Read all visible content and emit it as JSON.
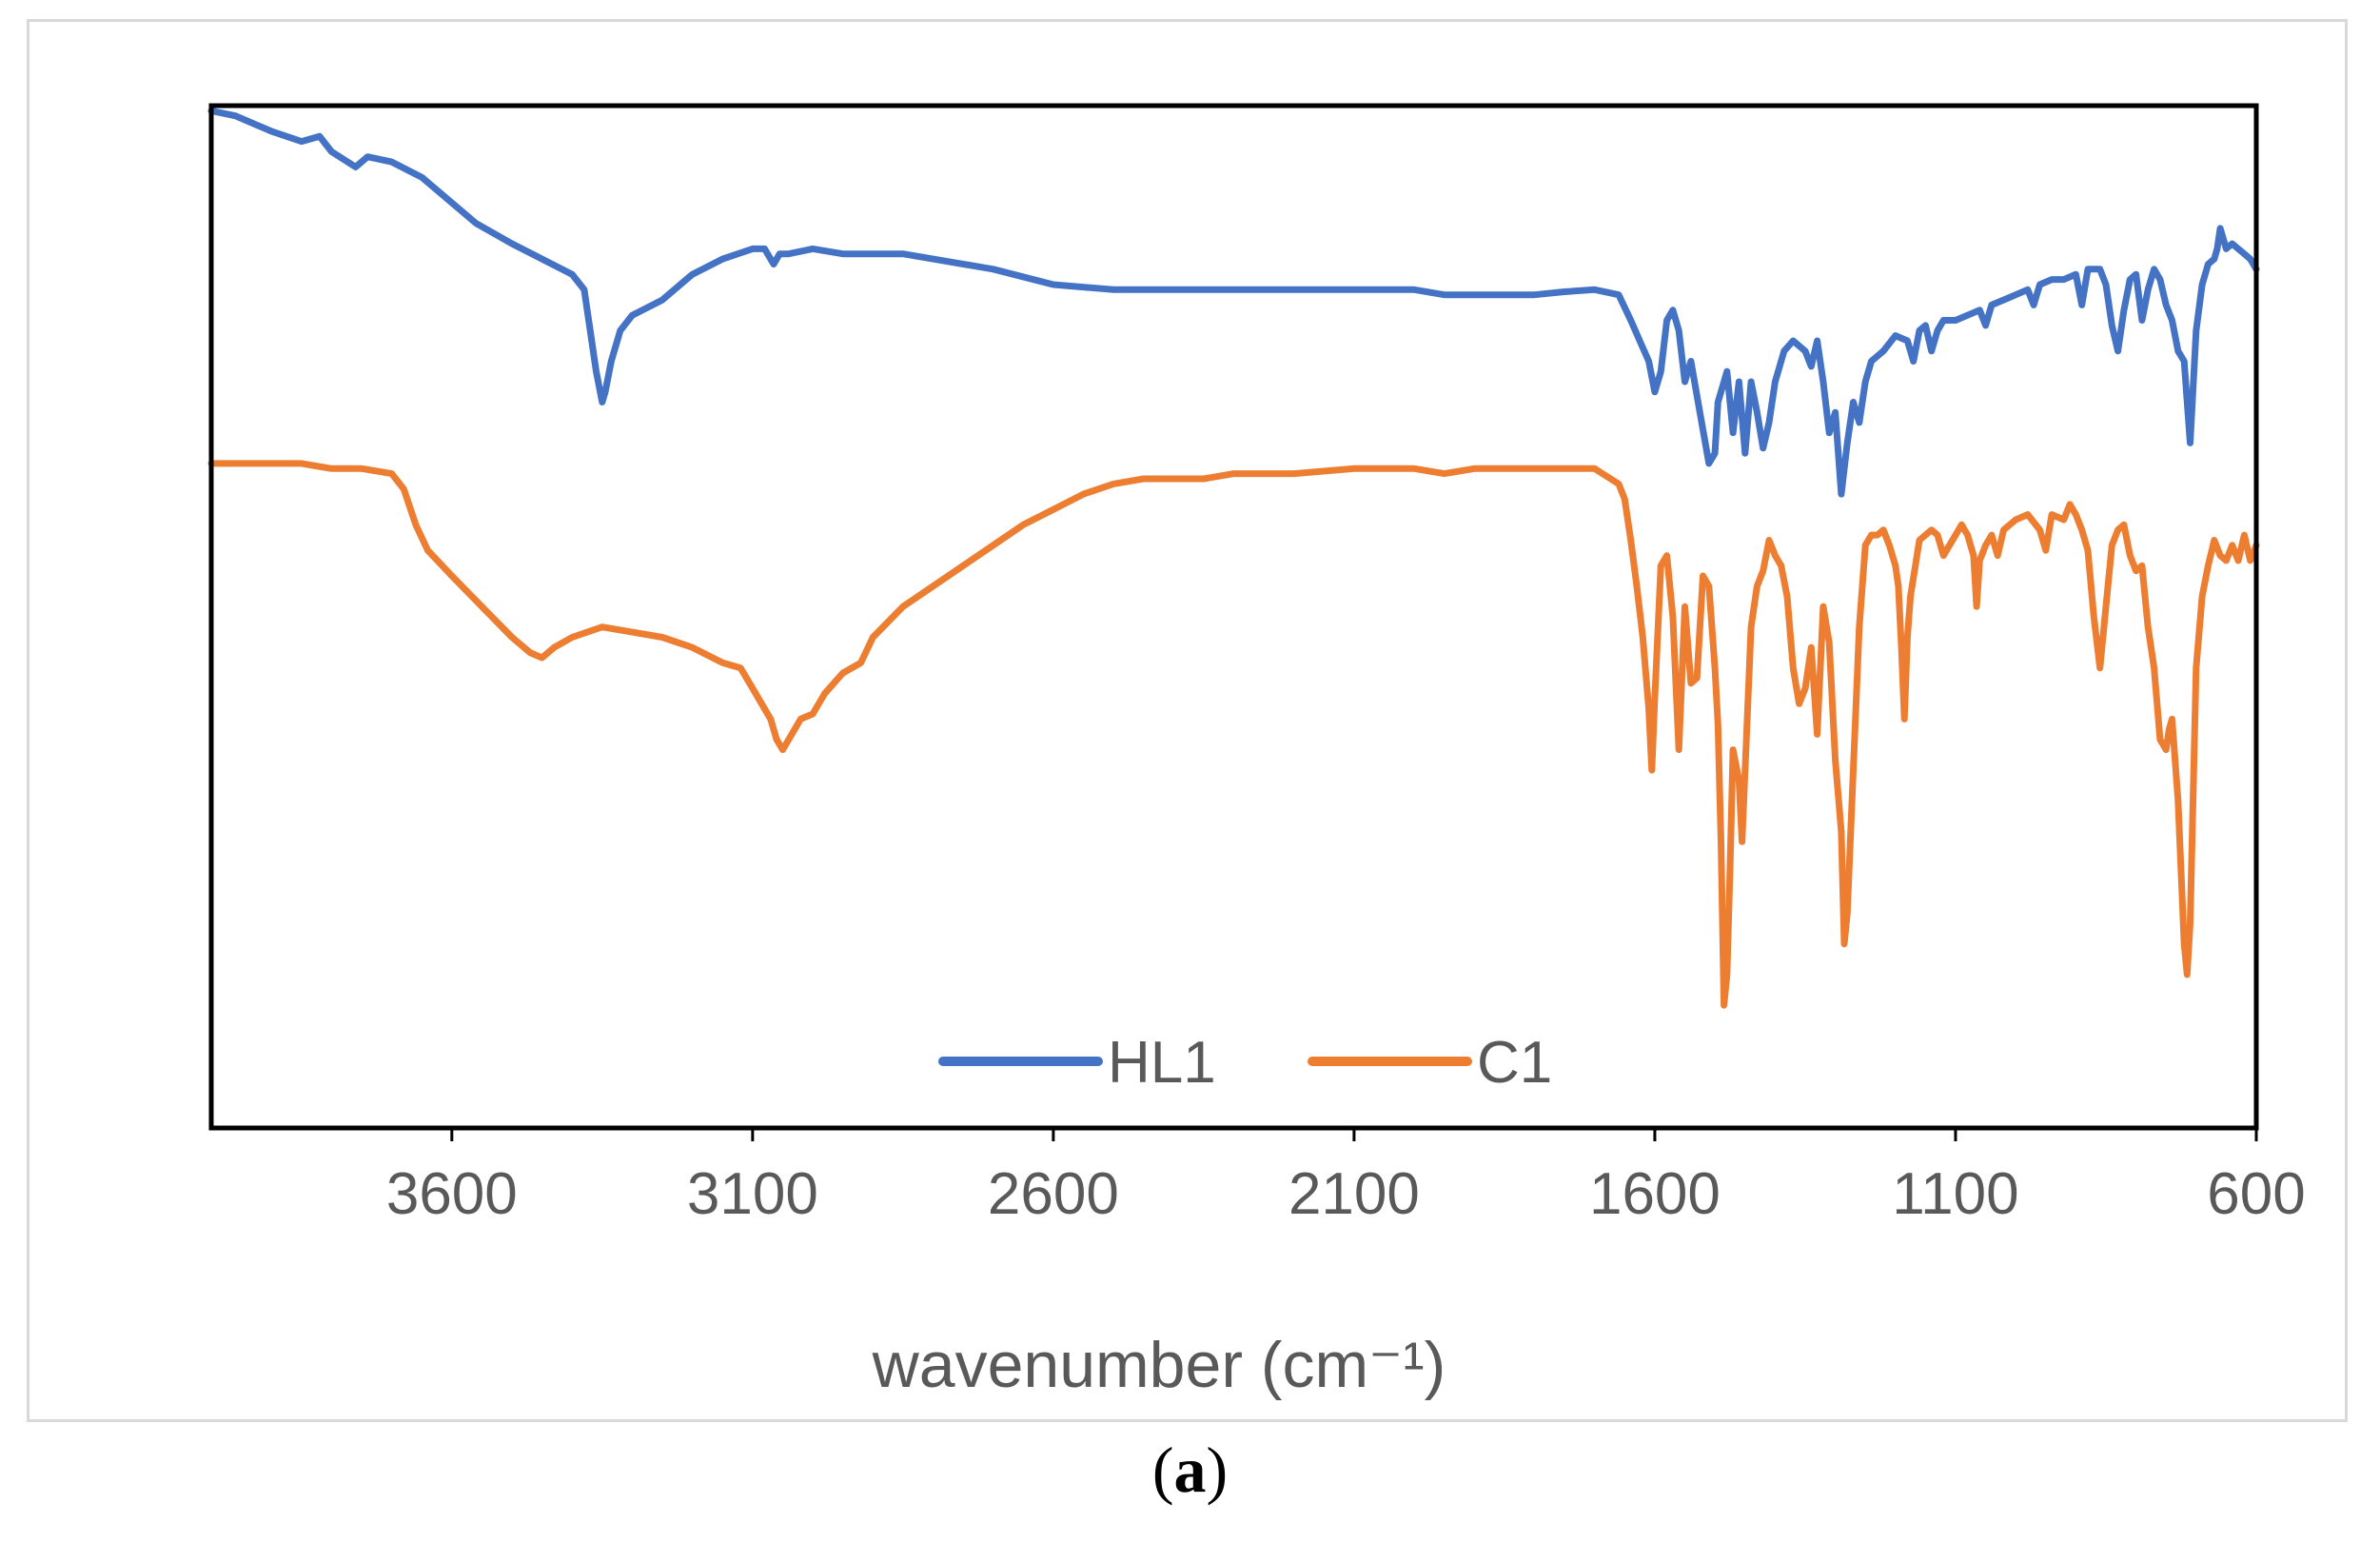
{
  "caption": {
    "open": "(",
    "letter": "a",
    "close": ")"
  },
  "chart_data": {
    "type": "line",
    "title": "",
    "xlabel": "wavenumber (cm⁻¹)",
    "ylabel": "",
    "xlim": [
      4000,
      600
    ],
    "ylim": [
      0,
      100
    ],
    "x_reversed": true,
    "x_ticks": [
      3600,
      3100,
      2600,
      2100,
      1600,
      1100,
      600
    ],
    "grid": false,
    "legend_position": "bottom-center",
    "series": [
      {
        "name": "HL1",
        "color": "#4472C4",
        "points": [
          [
            4000,
            99.5
          ],
          [
            3960,
            99
          ],
          [
            3900,
            97.5
          ],
          [
            3850,
            96.5
          ],
          [
            3820,
            97
          ],
          [
            3800,
            95.5
          ],
          [
            3760,
            94
          ],
          [
            3740,
            95
          ],
          [
            3700,
            94.5
          ],
          [
            3650,
            93
          ],
          [
            3600,
            90.5
          ],
          [
            3560,
            88.5
          ],
          [
            3500,
            86.5
          ],
          [
            3450,
            85
          ],
          [
            3400,
            83.5
          ],
          [
            3380,
            82
          ],
          [
            3370,
            78
          ],
          [
            3360,
            74
          ],
          [
            3350,
            71
          ],
          [
            3345,
            72
          ],
          [
            3335,
            75
          ],
          [
            3320,
            78
          ],
          [
            3300,
            79.5
          ],
          [
            3250,
            81
          ],
          [
            3200,
            83.5
          ],
          [
            3150,
            85
          ],
          [
            3100,
            86
          ],
          [
            3080,
            86
          ],
          [
            3065,
            84.5
          ],
          [
            3055,
            85.5
          ],
          [
            3040,
            85.5
          ],
          [
            3000,
            86
          ],
          [
            2950,
            85.5
          ],
          [
            2900,
            85.5
          ],
          [
            2850,
            85.5
          ],
          [
            2800,
            85
          ],
          [
            2700,
            84
          ],
          [
            2600,
            82.5
          ],
          [
            2500,
            82
          ],
          [
            2400,
            82
          ],
          [
            2300,
            82
          ],
          [
            2200,
            82
          ],
          [
            2100,
            82
          ],
          [
            2000,
            82
          ],
          [
            1950,
            81.5
          ],
          [
            1900,
            81.5
          ],
          [
            1850,
            81.5
          ],
          [
            1800,
            81.5
          ],
          [
            1750,
            81.8
          ],
          [
            1700,
            82
          ],
          [
            1660,
            81.5
          ],
          [
            1640,
            79
          ],
          [
            1625,
            77
          ],
          [
            1610,
            75
          ],
          [
            1600,
            72
          ],
          [
            1590,
            74
          ],
          [
            1580,
            79
          ],
          [
            1570,
            80
          ],
          [
            1560,
            78
          ],
          [
            1550,
            73
          ],
          [
            1540,
            75
          ],
          [
            1525,
            70
          ],
          [
            1510,
            65
          ],
          [
            1500,
            66
          ],
          [
            1495,
            71
          ],
          [
            1480,
            74
          ],
          [
            1470,
            68
          ],
          [
            1460,
            73
          ],
          [
            1450,
            66
          ],
          [
            1440,
            73
          ],
          [
            1430,
            70
          ],
          [
            1420,
            66.5
          ],
          [
            1410,
            69
          ],
          [
            1400,
            73
          ],
          [
            1385,
            76
          ],
          [
            1370,
            77
          ],
          [
            1350,
            76
          ],
          [
            1340,
            74.5
          ],
          [
            1330,
            77
          ],
          [
            1320,
            73
          ],
          [
            1310,
            68
          ],
          [
            1300,
            70
          ],
          [
            1290,
            62
          ],
          [
            1280,
            67
          ],
          [
            1270,
            71
          ],
          [
            1260,
            69
          ],
          [
            1250,
            73
          ],
          [
            1240,
            75
          ],
          [
            1230,
            75.5
          ],
          [
            1220,
            76
          ],
          [
            1200,
            77.5
          ],
          [
            1180,
            77
          ],
          [
            1170,
            75
          ],
          [
            1160,
            78
          ],
          [
            1150,
            78.5
          ],
          [
            1140,
            76
          ],
          [
            1130,
            78
          ],
          [
            1120,
            79
          ],
          [
            1100,
            79
          ],
          [
            1080,
            79.5
          ],
          [
            1060,
            80
          ],
          [
            1050,
            78.5
          ],
          [
            1040,
            80.5
          ],
          [
            1020,
            81
          ],
          [
            1000,
            81.5
          ],
          [
            980,
            82
          ],
          [
            970,
            80.5
          ],
          [
            960,
            82.5
          ],
          [
            940,
            83
          ],
          [
            920,
            83
          ],
          [
            900,
            83.5
          ],
          [
            890,
            80.5
          ],
          [
            880,
            84
          ],
          [
            860,
            84
          ],
          [
            850,
            82.5
          ],
          [
            840,
            78.5
          ],
          [
            830,
            76
          ],
          [
            820,
            80
          ],
          [
            810,
            83
          ],
          [
            800,
            83.5
          ],
          [
            790,
            79
          ],
          [
            780,
            82
          ],
          [
            770,
            84
          ],
          [
            760,
            83
          ],
          [
            750,
            80.5
          ],
          [
            740,
            79
          ],
          [
            730,
            76
          ],
          [
            720,
            75
          ],
          [
            710,
            67
          ],
          [
            700,
            78
          ],
          [
            690,
            82.5
          ],
          [
            680,
            84.5
          ],
          [
            670,
            85
          ],
          [
            665,
            86
          ],
          [
            660,
            88
          ],
          [
            650,
            86
          ],
          [
            640,
            86.5
          ],
          [
            630,
            86
          ],
          [
            620,
            85.5
          ],
          [
            610,
            85
          ],
          [
            600,
            84
          ]
        ]
      },
      {
        "name": "C1",
        "color": "#ED7D31",
        "points": [
          [
            4000,
            65
          ],
          [
            3950,
            65
          ],
          [
            3900,
            65
          ],
          [
            3850,
            65
          ],
          [
            3800,
            64.5
          ],
          [
            3750,
            64.5
          ],
          [
            3700,
            64
          ],
          [
            3680,
            62.5
          ],
          [
            3660,
            59
          ],
          [
            3640,
            56.5
          ],
          [
            3600,
            54
          ],
          [
            3550,
            51
          ],
          [
            3500,
            48
          ],
          [
            3470,
            46.5
          ],
          [
            3450,
            46
          ],
          [
            3430,
            47
          ],
          [
            3400,
            48
          ],
          [
            3350,
            49
          ],
          [
            3300,
            48.5
          ],
          [
            3250,
            48
          ],
          [
            3200,
            47
          ],
          [
            3150,
            45.5
          ],
          [
            3120,
            45
          ],
          [
            3100,
            43
          ],
          [
            3080,
            41
          ],
          [
            3070,
            40
          ],
          [
            3060,
            38
          ],
          [
            3050,
            37
          ],
          [
            3040,
            38
          ],
          [
            3020,
            40
          ],
          [
            3000,
            40.5
          ],
          [
            2980,
            42.5
          ],
          [
            2950,
            44.5
          ],
          [
            2920,
            45.5
          ],
          [
            2900,
            48
          ],
          [
            2850,
            51
          ],
          [
            2800,
            53
          ],
          [
            2750,
            55
          ],
          [
            2700,
            57
          ],
          [
            2650,
            59
          ],
          [
            2600,
            60.5
          ],
          [
            2550,
            62
          ],
          [
            2500,
            63
          ],
          [
            2450,
            63.5
          ],
          [
            2400,
            63.5
          ],
          [
            2350,
            63.5
          ],
          [
            2300,
            64
          ],
          [
            2250,
            64
          ],
          [
            2200,
            64
          ],
          [
            2100,
            64.5
          ],
          [
            2000,
            64.5
          ],
          [
            1950,
            64
          ],
          [
            1900,
            64.5
          ],
          [
            1850,
            64.5
          ],
          [
            1800,
            64.5
          ],
          [
            1750,
            64.5
          ],
          [
            1700,
            64.5
          ],
          [
            1660,
            63
          ],
          [
            1650,
            61.5
          ],
          [
            1640,
            57.5
          ],
          [
            1630,
            53
          ],
          [
            1620,
            48
          ],
          [
            1610,
            41
          ],
          [
            1605,
            35
          ],
          [
            1600,
            42
          ],
          [
            1590,
            55
          ],
          [
            1580,
            56
          ],
          [
            1570,
            50
          ],
          [
            1560,
            37
          ],
          [
            1550,
            51
          ],
          [
            1540,
            43.5
          ],
          [
            1530,
            44
          ],
          [
            1520,
            54
          ],
          [
            1510,
            53
          ],
          [
            1500,
            45
          ],
          [
            1495,
            39.5
          ],
          [
            1490,
            28
          ],
          [
            1485,
            12
          ],
          [
            1480,
            15
          ],
          [
            1475,
            25
          ],
          [
            1470,
            37
          ],
          [
            1460,
            34
          ],
          [
            1455,
            28
          ],
          [
            1450,
            35
          ],
          [
            1440,
            49
          ],
          [
            1430,
            53
          ],
          [
            1420,
            54.5
          ],
          [
            1410,
            57.5
          ],
          [
            1400,
            56
          ],
          [
            1390,
            55
          ],
          [
            1380,
            52
          ],
          [
            1370,
            45
          ],
          [
            1360,
            41.5
          ],
          [
            1350,
            43
          ],
          [
            1340,
            47
          ],
          [
            1330,
            38.5
          ],
          [
            1320,
            51
          ],
          [
            1310,
            47.5
          ],
          [
            1300,
            36
          ],
          [
            1290,
            29
          ],
          [
            1285,
            18
          ],
          [
            1280,
            21
          ],
          [
            1270,
            35
          ],
          [
            1260,
            49
          ],
          [
            1250,
            57
          ],
          [
            1240,
            58
          ],
          [
            1230,
            58
          ],
          [
            1220,
            58.5
          ],
          [
            1210,
            57
          ],
          [
            1200,
            55
          ],
          [
            1195,
            53
          ],
          [
            1190,
            47
          ],
          [
            1185,
            40
          ],
          [
            1180,
            48
          ],
          [
            1175,
            52
          ],
          [
            1160,
            57.5
          ],
          [
            1150,
            58
          ],
          [
            1140,
            58.5
          ],
          [
            1130,
            58
          ],
          [
            1120,
            56
          ],
          [
            1110,
            57
          ],
          [
            1100,
            58
          ],
          [
            1090,
            59
          ],
          [
            1080,
            58
          ],
          [
            1070,
            56
          ],
          [
            1065,
            51
          ],
          [
            1060,
            55.5
          ],
          [
            1050,
            57
          ],
          [
            1040,
            58
          ],
          [
            1030,
            56
          ],
          [
            1020,
            58.5
          ],
          [
            1000,
            59.5
          ],
          [
            980,
            60
          ],
          [
            960,
            58.5
          ],
          [
            950,
            56.5
          ],
          [
            940,
            60
          ],
          [
            920,
            59.5
          ],
          [
            910,
            61
          ],
          [
            900,
            60
          ],
          [
            890,
            58.5
          ],
          [
            880,
            56.5
          ],
          [
            870,
            50
          ],
          [
            860,
            45
          ],
          [
            850,
            51
          ],
          [
            840,
            57
          ],
          [
            830,
            58.5
          ],
          [
            820,
            59
          ],
          [
            810,
            56
          ],
          [
            800,
            54.5
          ],
          [
            790,
            55
          ],
          [
            780,
            49
          ],
          [
            770,
            45
          ],
          [
            760,
            38
          ],
          [
            750,
            37
          ],
          [
            745,
            39
          ],
          [
            740,
            40
          ],
          [
            730,
            32
          ],
          [
            720,
            18
          ],
          [
            715,
            15
          ],
          [
            710,
            20
          ],
          [
            700,
            45
          ],
          [
            690,
            52
          ],
          [
            680,
            55
          ],
          [
            670,
            57.5
          ],
          [
            660,
            56
          ],
          [
            650,
            55.5
          ],
          [
            640,
            57
          ],
          [
            630,
            55.5
          ],
          [
            620,
            58
          ],
          [
            610,
            55.5
          ],
          [
            600,
            57
          ]
        ]
      }
    ]
  }
}
